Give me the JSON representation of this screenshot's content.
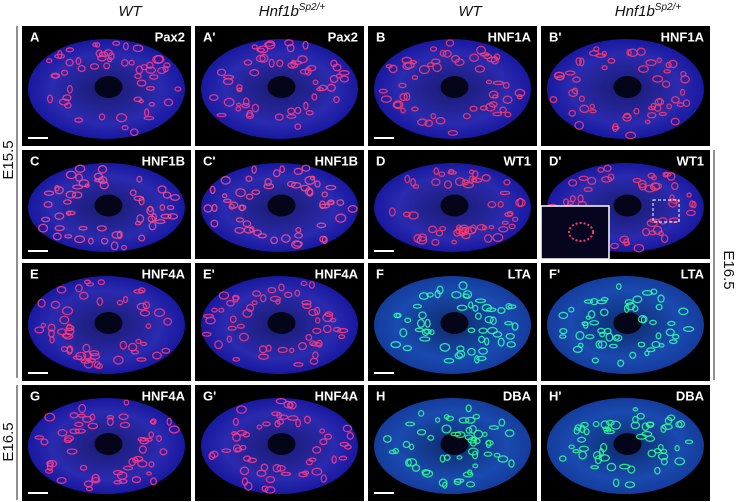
{
  "headers": {
    "columns": [
      {
        "text": "WT"
      },
      {
        "text": "Hnf1b",
        "sup": "Sp2/+"
      },
      {
        "text": "WT"
      },
      {
        "text": "Hnf1b",
        "sup": "Sp2/+"
      }
    ]
  },
  "row_labels": {
    "left_top": "E15.5",
    "left_bottom": "E16.5",
    "right": "E16.5"
  },
  "panels": [
    {
      "letter": "A",
      "marker": "Pax2",
      "stain_color": "#ff3a8a"
    },
    {
      "letter": "A'",
      "marker": "Pax2",
      "stain_color": "#ff3a8a"
    },
    {
      "letter": "B",
      "marker": "HNF1A",
      "stain_color": "#ff3a6a"
    },
    {
      "letter": "B'",
      "marker": "HNF1A",
      "stain_color": "#ff3a6a"
    },
    {
      "letter": "C",
      "marker": "HNF1B",
      "stain_color": "#ff4a8a"
    },
    {
      "letter": "C'",
      "marker": "HNF1B",
      "stain_color": "#ff4a8a"
    },
    {
      "letter": "D",
      "marker": "WT1",
      "stain_color": "#ff3a6a"
    },
    {
      "letter": "D'",
      "marker": "WT1",
      "stain_color": "#ff3a6a"
    },
    {
      "letter": "E",
      "marker": "HNF4A",
      "stain_color": "#ff3a7a"
    },
    {
      "letter": "E'",
      "marker": "HNF4A",
      "stain_color": "#ff3a7a"
    },
    {
      "letter": "F",
      "marker": "LTA",
      "stain_color": "#30ffb0"
    },
    {
      "letter": "F'",
      "marker": "LTA",
      "stain_color": "#30ffb0"
    },
    {
      "letter": "G",
      "marker": "HNF4A",
      "stain_color": "#ff3a8a"
    },
    {
      "letter": "G'",
      "marker": "HNF4A",
      "stain_color": "#ff3a8a"
    },
    {
      "letter": "H",
      "marker": "DBA",
      "stain_color": "#30ff90"
    },
    {
      "letter": "H'",
      "marker": "DBA",
      "stain_color": "#30ff90"
    }
  ]
}
